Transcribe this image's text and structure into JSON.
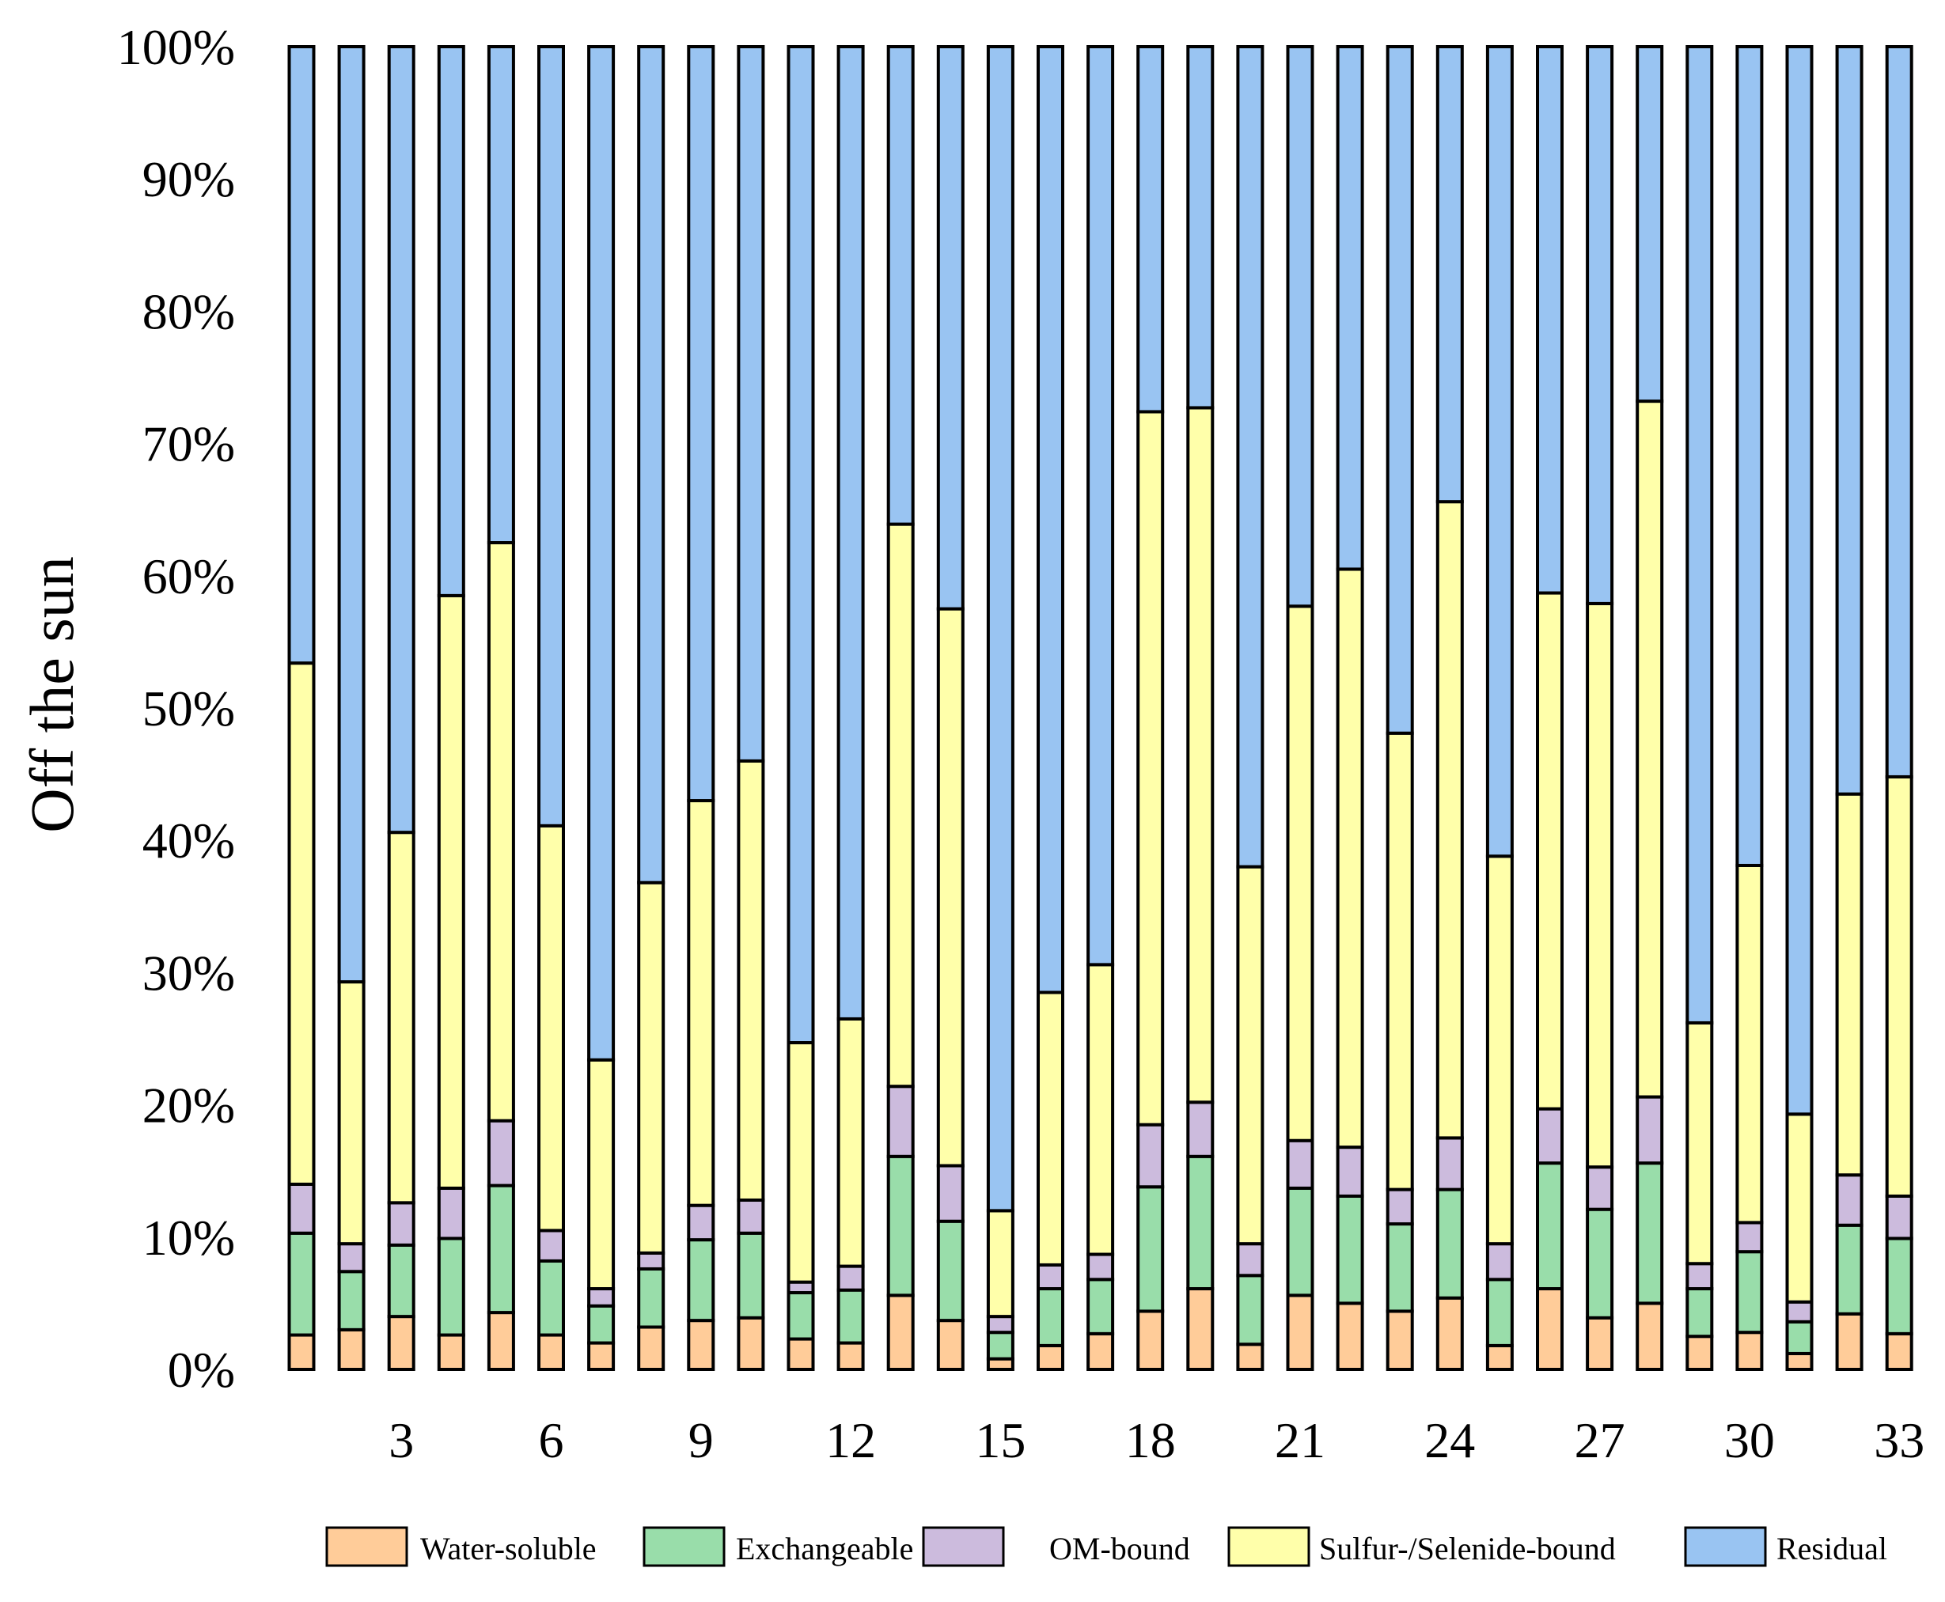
{
  "chart_data": {
    "type": "bar",
    "stacked": true,
    "normalized": true,
    "title": "",
    "xlabel": "",
    "ylabel": "Off the sun",
    "ylim": [
      0,
      100
    ],
    "yticks": [
      "0%",
      "10%",
      "20%",
      "30%",
      "40%",
      "50%",
      "60%",
      "70%",
      "80%",
      "90%",
      "100%"
    ],
    "categories": [
      "1",
      "2",
      "3",
      "4",
      "5",
      "6",
      "7",
      "8",
      "9",
      "10",
      "11",
      "12",
      "13",
      "14",
      "15",
      "16",
      "17",
      "18",
      "19",
      "20",
      "21",
      "22",
      "23",
      "24",
      "25",
      "26",
      "27",
      "28",
      "29",
      "30",
      "31",
      "32",
      "33"
    ],
    "xtick_labels_shown": [
      "3",
      "6",
      "9",
      "12",
      "15",
      "18",
      "21",
      "24",
      "27",
      "30",
      "33"
    ],
    "legend_position": "bottom",
    "series": [
      {
        "name": "Water-soluble",
        "color": "#FFCC99",
        "values": [
          2.6,
          3.0,
          4.0,
          2.6,
          4.3,
          2.6,
          2.0,
          3.2,
          3.7,
          3.9,
          2.3,
          2.0,
          5.6,
          3.7,
          0.8,
          1.8,
          2.7,
          4.4,
          6.1,
          1.9,
          5.6,
          5.0,
          4.4,
          5.4,
          1.8,
          6.1,
          3.9,
          5.0,
          2.5,
          2.8,
          1.2,
          4.2,
          2.7
        ]
      },
      {
        "name": "Exchangeable",
        "color": "#99DDAA",
        "values": [
          7.7,
          4.4,
          5.4,
          7.3,
          9.6,
          5.6,
          2.8,
          4.4,
          6.1,
          6.4,
          3.5,
          4.0,
          10.5,
          7.5,
          2.0,
          4.3,
          4.1,
          9.4,
          10.0,
          5.2,
          8.1,
          8.1,
          6.6,
          8.2,
          5.0,
          9.5,
          8.2,
          10.6,
          3.6,
          6.1,
          2.4,
          6.7,
          7.2
        ]
      },
      {
        "name": "OM-bound",
        "color": "#CCBBDD",
        "values": [
          3.7,
          2.1,
          3.2,
          3.8,
          4.9,
          2.3,
          1.3,
          1.2,
          2.6,
          2.5,
          0.8,
          1.8,
          5.3,
          4.2,
          1.2,
          1.8,
          1.9,
          4.7,
          4.1,
          2.4,
          3.6,
          3.7,
          2.6,
          3.9,
          2.7,
          4.1,
          3.2,
          5.0,
          1.9,
          2.2,
          1.5,
          3.8,
          3.2
        ]
      },
      {
        "name": "Sulfur-/Selenide-bound",
        "color": "#FFFFAA",
        "values": [
          39.4,
          19.8,
          28.0,
          44.8,
          43.7,
          30.6,
          17.3,
          28.0,
          30.6,
          33.2,
          18.1,
          18.7,
          42.5,
          42.1,
          8.0,
          20.6,
          21.9,
          53.9,
          52.5,
          28.5,
          40.4,
          43.7,
          34.5,
          48.1,
          29.3,
          39.0,
          42.6,
          52.6,
          18.2,
          27.0,
          14.2,
          28.8,
          31.7
        ]
      },
      {
        "name": "Residual",
        "color": "#99C4F2",
        "values": [
          46.6,
          70.7,
          59.4,
          41.5,
          37.5,
          58.9,
          76.6,
          63.2,
          57.0,
          54.0,
          75.3,
          73.5,
          36.1,
          42.5,
          88.0,
          71.5,
          69.4,
          27.6,
          27.3,
          62.0,
          42.3,
          39.5,
          51.9,
          34.4,
          61.2,
          41.3,
          42.1,
          26.8,
          73.8,
          61.9,
          80.7,
          56.5,
          55.2
        ]
      }
    ]
  }
}
